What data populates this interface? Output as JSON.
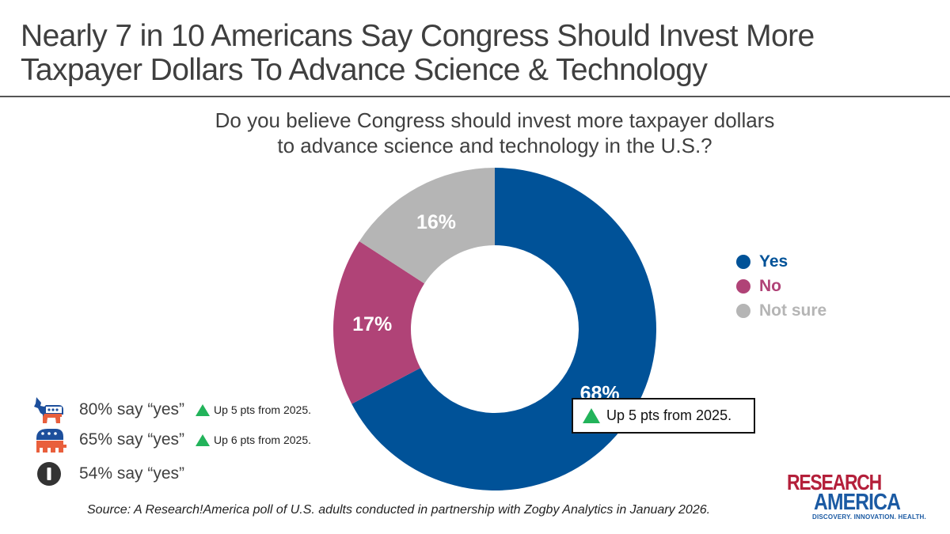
{
  "title": "Nearly 7 in 10 Americans Say Congress Should Invest More Taxpayer Dollars To Advance Science & Technology",
  "subtitle_line1": "Do you believe Congress should invest more taxpayer dollars",
  "subtitle_line2": "to advance science and technology in the U.S.?",
  "chart_data": {
    "type": "pie",
    "categories": [
      "Yes",
      "No",
      "Not sure"
    ],
    "values": [
      68,
      17,
      16
    ],
    "labels": [
      "68%",
      "17%",
      "16%"
    ],
    "colors": [
      "#005298",
      "#b04377",
      "#b5b5b5"
    ],
    "legend_placement": "right"
  },
  "callout": {
    "icon": "up-triangle-icon",
    "text": "Up 5 pts from 2025."
  },
  "party_breakdown": [
    {
      "icon": "democrat-donkey-icon",
      "text": "80% say “yes”",
      "change": "Up 5 pts from 2025."
    },
    {
      "icon": "republican-elephant-icon",
      "text": "65% say “yes”",
      "change": "Up 6 pts from 2025."
    },
    {
      "icon": "independent-icon",
      "text": "54% say “yes”",
      "change": ""
    }
  ],
  "source": "Source: A Research!America poll of U.S. adults conducted in partnership with Zogby Analytics in January 2026.",
  "logo": {
    "line1": "RESEARCH",
    "line2": "AMERICA",
    "tagline": "DISCOVERY. INNOVATION. HEALTH."
  }
}
